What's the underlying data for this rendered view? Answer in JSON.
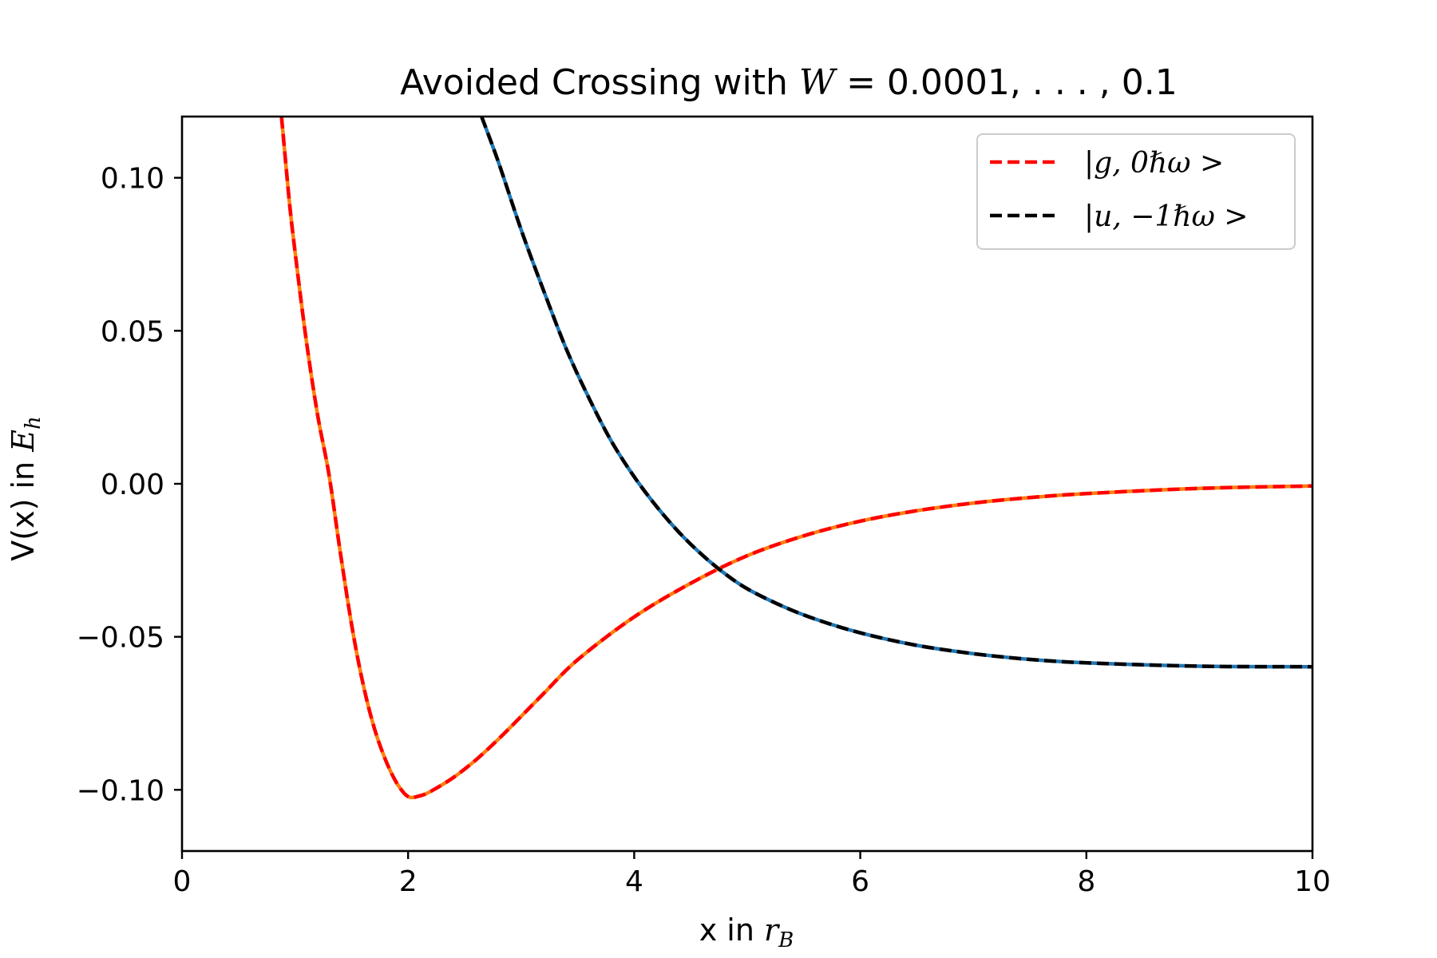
{
  "chart_data": {
    "type": "line",
    "title": {
      "prefix": "Avoided Crossing with ",
      "var": "W",
      "suffix": " = 0.0001, . . . , 0.1"
    },
    "xlabel": {
      "text": "x in ",
      "var": "r",
      "sub": "B"
    },
    "ylabel": {
      "text": "V(x) in ",
      "var": "E",
      "sub": "h"
    },
    "xlim": [
      0,
      10
    ],
    "ylim": [
      -0.12,
      0.12
    ],
    "xticks": [
      0,
      2,
      4,
      6,
      8,
      10
    ],
    "xtick_labels": [
      "0",
      "2",
      "4",
      "6",
      "8",
      "10"
    ],
    "yticks": [
      -0.1,
      -0.05,
      0.0,
      0.05,
      0.1
    ],
    "ytick_labels": [
      "−0.10",
      "−0.05",
      "0.00",
      "0.05",
      "0.10"
    ],
    "grid": false,
    "legend": {
      "position": "top-right",
      "entries": [
        {
          "label": "|g, 0ℏω >",
          "color": "#ff0000"
        },
        {
          "label": "|u, −1ℏω >",
          "color": "#000000"
        }
      ]
    },
    "series": [
      {
        "name": "|g, 0ℏω >",
        "color": "#ff0000",
        "dash": "dashed",
        "underlay_color": "#ff7f0e",
        "x": [
          0.88,
          0.95,
          1.0,
          1.1,
          1.2,
          1.3,
          1.4,
          1.5,
          1.6,
          1.7,
          1.8,
          1.9,
          2.0,
          2.1,
          2.2,
          2.4,
          2.6,
          2.8,
          3.0,
          3.2,
          3.5,
          4.0,
          4.5,
          5.0,
          5.5,
          6.0,
          6.5,
          7.0,
          7.5,
          8.0,
          9.0,
          10.0
        ],
        "y": [
          0.12,
          0.092,
          0.0758,
          0.0466,
          0.0224,
          0.003,
          -0.0223,
          -0.046,
          -0.0652,
          -0.0797,
          -0.0902,
          -0.0978,
          -0.1022,
          -0.102,
          -0.1005,
          -0.096,
          -0.0902,
          -0.0834,
          -0.076,
          -0.0685,
          -0.0575,
          -0.0435,
          -0.0325,
          -0.0235,
          -0.017,
          -0.0122,
          -0.0088,
          -0.0063,
          -0.0045,
          -0.0032,
          -0.0015,
          -0.0007
        ]
      },
      {
        "name": "|u, −1ℏω >",
        "color": "#000000",
        "dash": "dashed",
        "underlay_color": "#1f77b4",
        "x": [
          2.65,
          2.8,
          3.0,
          3.2,
          3.4,
          3.6,
          3.8,
          4.0,
          4.2,
          4.4,
          4.6,
          4.8,
          5.0,
          5.3,
          5.6,
          6.0,
          6.5,
          7.0,
          7.5,
          8.0,
          9.0,
          10.0
        ],
        "y": [
          0.12,
          0.105,
          0.083,
          0.063,
          0.044,
          0.028,
          0.0138,
          0.0023,
          -0.0075,
          -0.016,
          -0.0232,
          -0.0293,
          -0.0343,
          -0.0398,
          -0.0442,
          -0.0487,
          -0.0528,
          -0.0555,
          -0.0574,
          -0.0585,
          -0.0596,
          -0.0598
        ]
      }
    ]
  }
}
